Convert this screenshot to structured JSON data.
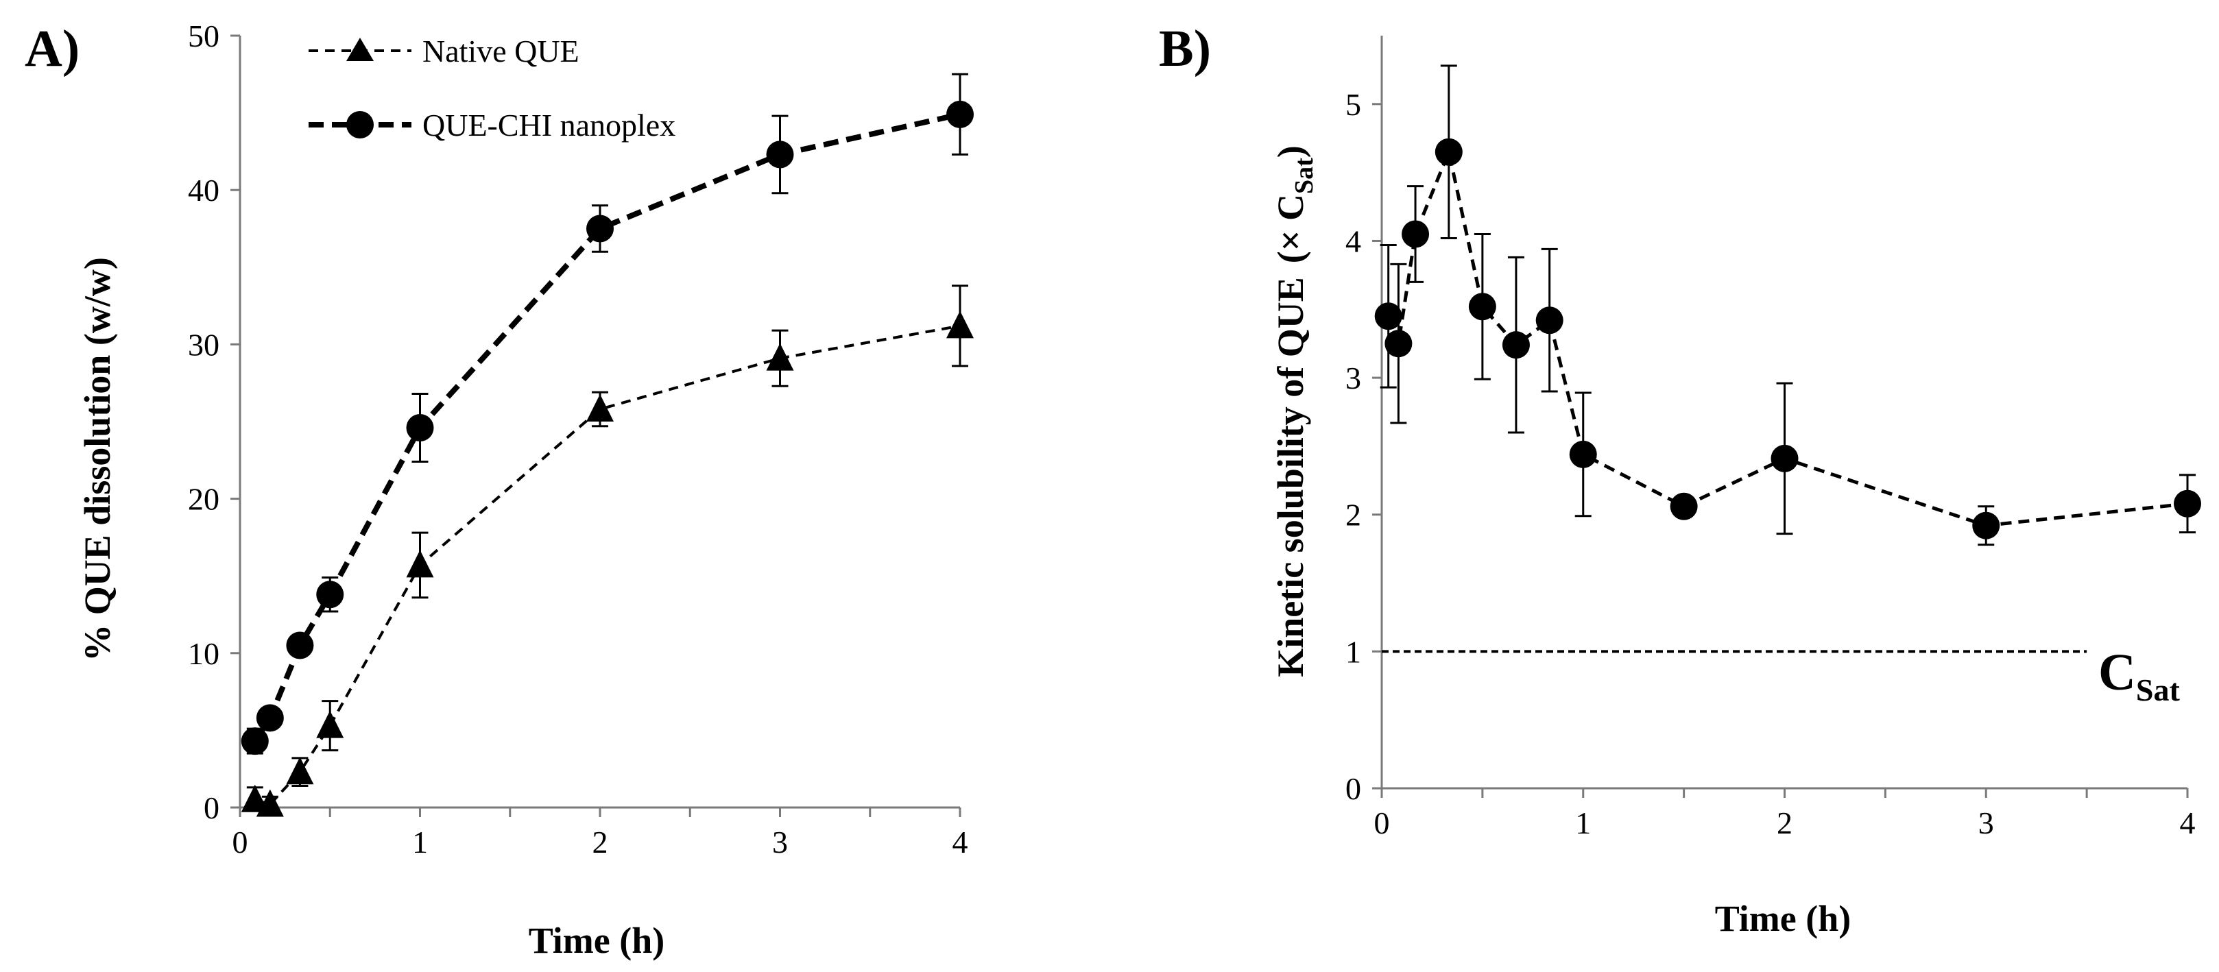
{
  "chart_data": [
    {
      "type": "line",
      "panel": "A)",
      "title": "",
      "xlabel": "Time (h)",
      "ylabel": "% QUE dissolution (w/w)",
      "xlim": [
        0,
        4
      ],
      "ylim": [
        0,
        50
      ],
      "x_ticks": [
        "0",
        "1",
        "2",
        "3",
        "4"
      ],
      "y_ticks": [
        "0",
        "10",
        "20",
        "30",
        "40",
        "50"
      ],
      "legend_position": "top-left",
      "series": [
        {
          "name": "Native QUE",
          "marker": "triangle",
          "line": "dashed-thin",
          "x": [
            0.083,
            0.167,
            0.333,
            0.5,
            1,
            2,
            3,
            4
          ],
          "y": [
            0.5,
            0.2,
            2.3,
            5.3,
            15.7,
            25.8,
            29.1,
            31.2
          ],
          "err": [
            0.8,
            0.5,
            0.9,
            1.6,
            2.1,
            1.1,
            1.8,
            2.6
          ]
        },
        {
          "name": "QUE-CHI nanoplex",
          "marker": "circle",
          "line": "dashed-thick",
          "x": [
            0.083,
            0.167,
            0.333,
            0.5,
            1,
            2,
            3,
            4
          ],
          "y": [
            4.3,
            5.8,
            10.5,
            13.8,
            24.6,
            37.5,
            42.3,
            44.9
          ],
          "err": [
            0.8,
            0.5,
            0.6,
            1.1,
            2.2,
            1.5,
            2.5,
            2.6
          ]
        }
      ]
    },
    {
      "type": "line",
      "panel": "B)",
      "title": "",
      "xlabel": "Time (h)",
      "ylabel": "Kinetic solubility of QUE",
      "ylabel_suffix": "(× C",
      "ylabel_sub": "Sat",
      "ylabel_close": ")",
      "xlim": [
        0,
        4
      ],
      "ylim": [
        0,
        5.5
      ],
      "x_ticks": [
        "0",
        "1",
        "2",
        "3",
        "4"
      ],
      "y_ticks": [
        "0",
        "1",
        "2",
        "3",
        "4",
        "5"
      ],
      "series": [
        {
          "name": "QUE-CHI nanoplex",
          "marker": "circle",
          "line": "dashed",
          "x": [
            0.033,
            0.083,
            0.167,
            0.333,
            0.5,
            0.667,
            0.833,
            1,
            1.5,
            2,
            3,
            4
          ],
          "y": [
            3.45,
            3.25,
            4.05,
            4.65,
            3.52,
            3.24,
            3.42,
            2.44,
            2.06,
            2.41,
            1.92,
            2.08
          ],
          "err": [
            0.52,
            0.58,
            0.35,
            0.63,
            0.53,
            0.64,
            0.52,
            0.45,
            0.07,
            0.55,
            0.14,
            0.21
          ]
        }
      ],
      "reference_line": {
        "label": "C",
        "label_sub": "Sat",
        "y": 1,
        "x_end": 3.5
      }
    }
  ]
}
